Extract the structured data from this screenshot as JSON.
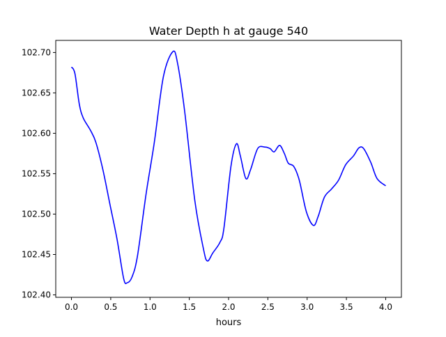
{
  "chart_data": {
    "type": "line",
    "title": "Water Depth h at gauge 540",
    "xlabel": "hours",
    "ylabel": "",
    "xlim": [
      -0.2,
      4.2
    ],
    "ylim": [
      102.397,
      102.715
    ],
    "xticks": [
      0.0,
      0.5,
      1.0,
      1.5,
      2.0,
      2.5,
      3.0,
      3.5,
      4.0
    ],
    "xtick_labels": [
      "0.0",
      "0.5",
      "1.0",
      "1.5",
      "2.0",
      "2.5",
      "3.0",
      "3.5",
      "4.0"
    ],
    "yticks": [
      102.4,
      102.45,
      102.5,
      102.55,
      102.6,
      102.65,
      102.7
    ],
    "ytick_labels": [
      "102.40",
      "102.45",
      "102.50",
      "102.55",
      "102.60",
      "102.65",
      "102.70"
    ],
    "grid": false,
    "series": [
      {
        "name": "h",
        "color": "#0000ff",
        "x": [
          0.0,
          0.044,
          0.1,
          0.15,
          0.24,
          0.31,
          0.4,
          0.49,
          0.58,
          0.665,
          0.71,
          0.77,
          0.84,
          0.95,
          1.055,
          1.17,
          1.29,
          1.35,
          1.44,
          1.57,
          1.68,
          1.73,
          1.8,
          1.89,
          1.94,
          2.03,
          2.1,
          2.15,
          2.22,
          2.28,
          2.37,
          2.46,
          2.53,
          2.58,
          2.65,
          2.71,
          2.76,
          2.83,
          2.9,
          2.99,
          3.08,
          3.14,
          3.22,
          3.31,
          3.4,
          3.49,
          3.59,
          3.66,
          3.72,
          3.81,
          3.89,
          4.0
        ],
        "y": [
          102.682,
          102.674,
          102.636,
          102.619,
          102.604,
          102.589,
          102.555,
          102.512,
          102.469,
          102.42,
          102.415,
          102.422,
          102.448,
          102.525,
          102.589,
          102.67,
          102.701,
          102.687,
          102.628,
          102.517,
          102.457,
          102.442,
          102.452,
          102.465,
          102.482,
          102.559,
          102.587,
          102.572,
          102.544,
          102.555,
          102.581,
          102.583,
          102.581,
          102.577,
          102.585,
          102.575,
          102.563,
          102.559,
          102.542,
          102.503,
          102.486,
          102.497,
          102.521,
          102.531,
          102.542,
          102.561,
          102.572,
          102.582,
          102.581,
          102.564,
          102.544,
          102.535
        ]
      }
    ]
  }
}
